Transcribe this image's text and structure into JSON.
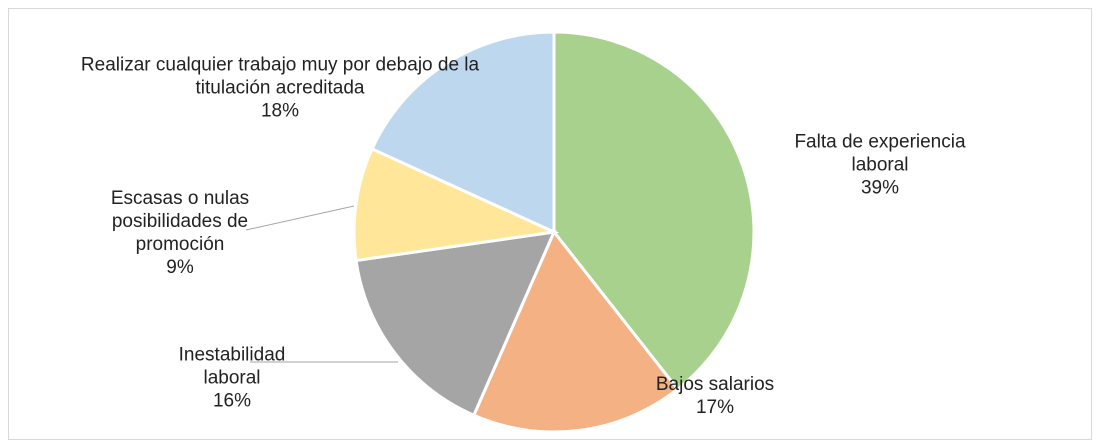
{
  "chart_data": {
    "type": "pie",
    "categories": [
      "Falta de experiencia laboral",
      "Bajos salarios",
      "Inestabilidad laboral",
      "Escasas o nulas posibilidades de promoción",
      "Realizar cualquier trabajo muy por debajo de la titulación acreditada"
    ],
    "values": [
      39,
      17,
      16,
      9,
      18
    ],
    "value_labels": [
      "39%",
      "17%",
      "16%",
      "9%",
      "18%"
    ],
    "colors": [
      "#a9d18e",
      "#f4b183",
      "#a5a5a5",
      "#ffe699",
      "#bdd7ee"
    ]
  }
}
